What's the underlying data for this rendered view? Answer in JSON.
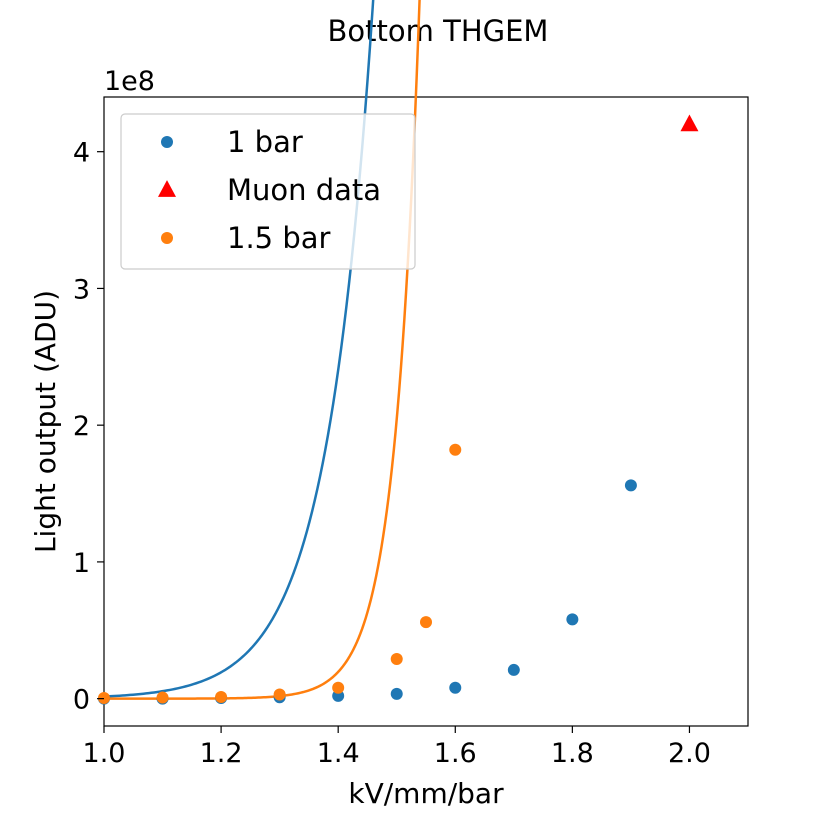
{
  "chart_data": {
    "type": "scatter",
    "title": "Bottom THGEM",
    "xlabel": "kV/mm/bar",
    "ylabel": "Light output (ADU)",
    "y_offset_label": "1e8",
    "xlim": [
      1.0,
      2.1
    ],
    "ylim": [
      -0.2,
      4.4
    ],
    "x_ticks": [
      1.0,
      1.2,
      1.4,
      1.6,
      1.8,
      2.0
    ],
    "x_tick_labels": [
      "1.0",
      "1.2",
      "1.4",
      "1.6",
      "1.8",
      "2.0"
    ],
    "y_ticks": [
      0,
      1,
      2,
      3,
      4
    ],
    "y_tick_labels": [
      "0",
      "1",
      "2",
      "3",
      "4"
    ],
    "legend_position": "top-left",
    "series": [
      {
        "name": "1 bar",
        "marker": "circle",
        "color": "#1f77b4",
        "x": [
          1.0,
          1.1,
          1.2,
          1.3,
          1.4,
          1.5,
          1.6,
          1.7,
          1.8,
          1.9
        ],
        "y": [
          0.0,
          0.0,
          0.005,
          0.01,
          0.02,
          0.035,
          0.08,
          0.21,
          0.58,
          1.56
        ],
        "fit": {
          "a": 5.1e-08,
          "b": 12.62,
          "x_range": [
            1.0,
            1.9
          ]
        }
      },
      {
        "name": "Muon data",
        "marker": "triangle",
        "color": "#ff0000",
        "x": [
          2.0
        ],
        "y": [
          4.2
        ]
      },
      {
        "name": "1.5 bar",
        "marker": "circle",
        "color": "#ff7f0e",
        "x": [
          1.0,
          1.1,
          1.2,
          1.3,
          1.4,
          1.5,
          1.55,
          1.6
        ],
        "y": [
          0.005,
          0.008,
          0.012,
          0.03,
          0.08,
          0.29,
          0.56,
          1.82
        ],
        "fit": {
          "a": 1.05e-15,
          "b": 23.47,
          "x_range": [
            1.0,
            1.6
          ]
        }
      }
    ]
  }
}
